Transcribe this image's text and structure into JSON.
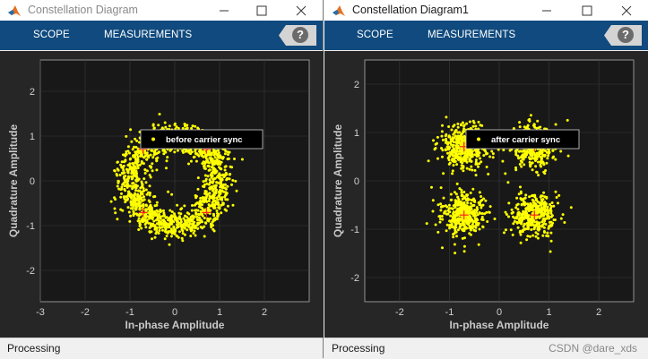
{
  "windows": [
    {
      "title": "Constellation Diagram",
      "active": false,
      "tabs": [
        "SCOPE",
        "MEASUREMENTS"
      ],
      "help_label": "?",
      "status": "Processing",
      "legend": "before carrier sync",
      "chart_data": {
        "type": "scatter",
        "xlabel": "In-phase Amplitude",
        "ylabel": "Quadrature Amplitude",
        "xlim": [
          -3,
          3
        ],
        "ylim": [
          -2.7,
          2.7
        ],
        "xticks": [
          -3,
          -2,
          -1,
          0,
          1,
          2
        ],
        "yticks": [
          2,
          1,
          0,
          -1,
          -2
        ],
        "reference_points": [
          [
            -0.707,
            0.707
          ],
          [
            0.707,
            0.707
          ],
          [
            -0.707,
            -0.707
          ],
          [
            0.707,
            -0.707
          ]
        ],
        "shape": "ring",
        "ring_radius": 1.0,
        "spread": 0.17,
        "n_points": 1500,
        "marker_color": "#ffff00",
        "reference_color": "#ff2020"
      }
    },
    {
      "title": "Constellation Diagram1",
      "active": true,
      "tabs": [
        "SCOPE",
        "MEASUREMENTS"
      ],
      "help_label": "?",
      "status": "Processing",
      "legend": "after carrier sync",
      "watermark": "CSDN @dare_xds",
      "chart_data": {
        "type": "scatter",
        "xlabel": "In-phase Amplitude",
        "ylabel": "Quadrature Amplitude",
        "xlim": [
          -2.7,
          2.7
        ],
        "ylim": [
          -2.5,
          2.5
        ],
        "xticks": [
          -2,
          -1,
          0,
          1,
          2
        ],
        "yticks": [
          2,
          1,
          0,
          -1,
          -2
        ],
        "reference_points": [
          [
            -0.707,
            0.707
          ],
          [
            0.707,
            0.707
          ],
          [
            -0.707,
            -0.707
          ],
          [
            0.707,
            -0.707
          ]
        ],
        "shape": "clusters",
        "spread": 0.22,
        "n_points": 1500,
        "marker_color": "#ffff00",
        "reference_color": "#ff2020"
      }
    }
  ],
  "accent": {
    "toolstrip": "#104a7e",
    "plot_bg": "#262626",
    "axes_bg": "#181818"
  }
}
